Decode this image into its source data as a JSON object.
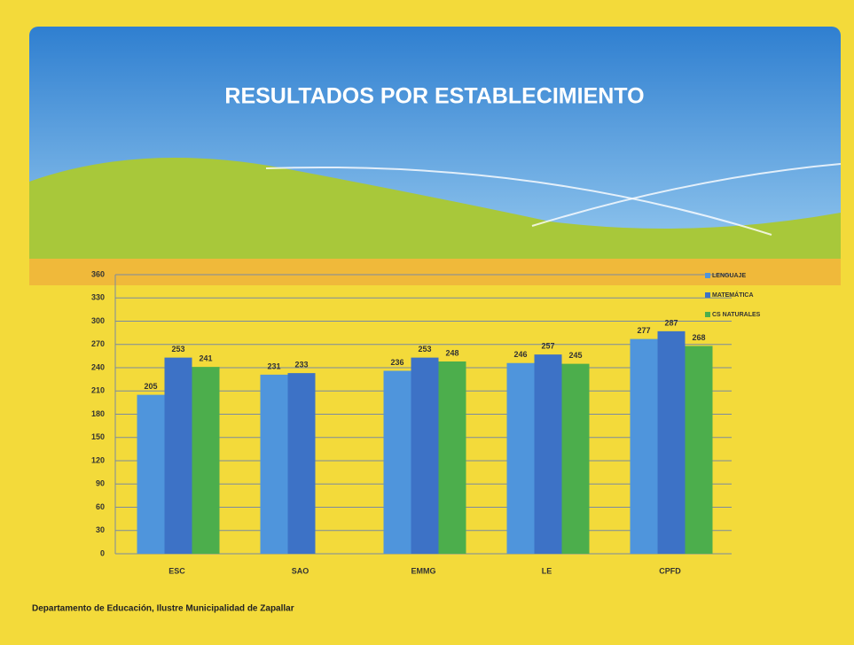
{
  "chart_data": {
    "type": "bar",
    "title": "RESULTADOS POR ESTABLECIMIENTO",
    "categories": [
      "ESC",
      "SAO",
      "EMMG",
      "LE",
      "CPFD"
    ],
    "series": [
      {
        "name": "LENGUAJE",
        "color": "#4f95dc",
        "values": [
          205,
          231,
          236,
          246,
          277
        ]
      },
      {
        "name": "MATEMÁTICA",
        "color": "#3d72c6",
        "values": [
          253,
          233,
          253,
          257,
          287
        ]
      },
      {
        "name": "CS NATURALES",
        "color": "#4cae4c",
        "values": [
          241,
          null,
          248,
          245,
          268
        ]
      }
    ],
    "ylim": [
      0,
      360
    ],
    "yticks": [
      0,
      30,
      60,
      90,
      120,
      150,
      180,
      210,
      240,
      270,
      300,
      330,
      360
    ],
    "grid": true,
    "legend": "right",
    "footer": "Departamento de Educación, Ilustre Municipalidad de Zapallar"
  }
}
